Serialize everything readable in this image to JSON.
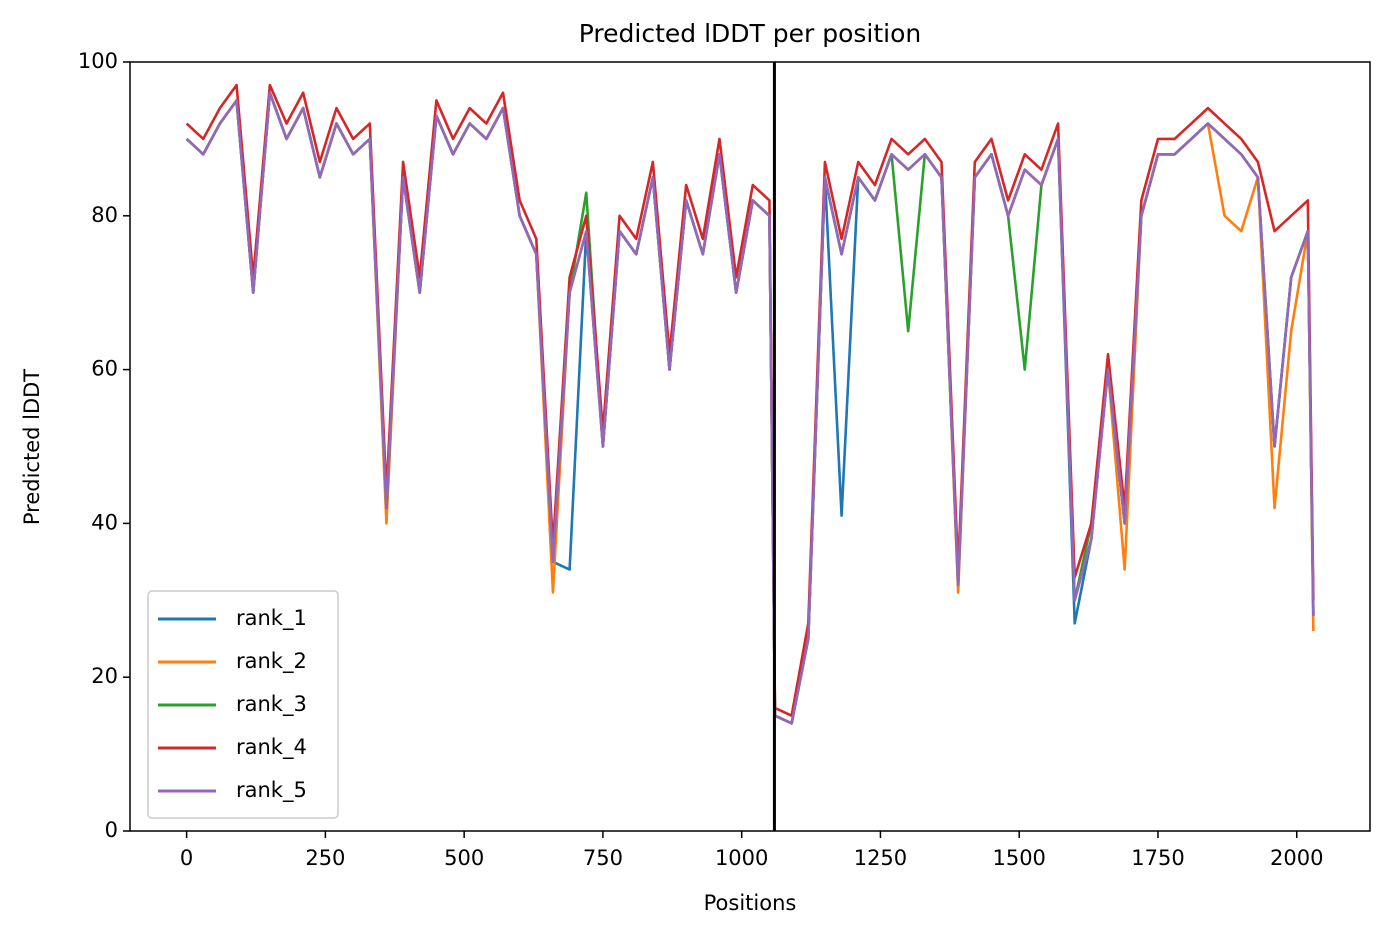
{
  "chart_data": {
    "type": "line",
    "title": "Predicted lDDT per position",
    "xlabel": "Positions",
    "ylabel": "Predicted lDDT",
    "x": [
      0,
      30,
      60,
      90,
      120,
      150,
      180,
      210,
      240,
      270,
      300,
      330,
      360,
      390,
      420,
      450,
      480,
      510,
      540,
      570,
      600,
      630,
      660,
      690,
      720,
      750,
      780,
      810,
      840,
      870,
      900,
      930,
      960,
      990,
      1020,
      1050,
      1060,
      1090,
      1120,
      1150,
      1180,
      1210,
      1240,
      1270,
      1300,
      1330,
      1360,
      1390,
      1420,
      1450,
      1480,
      1510,
      1540,
      1570,
      1600,
      1630,
      1660,
      1690,
      1720,
      1750,
      1780,
      1810,
      1840,
      1870,
      1900,
      1930,
      1960,
      1990,
      2020,
      2030
    ],
    "series": [
      {
        "name": "rank_1",
        "color": "#1f77b4",
        "values": [
          90,
          88,
          92,
          95,
          70,
          96,
          90,
          94,
          85,
          92,
          88,
          90,
          42,
          85,
          70,
          93,
          88,
          92,
          90,
          94,
          80,
          75,
          35,
          34,
          78,
          50,
          78,
          75,
          85,
          60,
          82,
          75,
          88,
          70,
          82,
          80,
          15,
          14,
          25,
          85,
          41,
          85,
          82,
          88,
          86,
          88,
          85,
          32,
          85,
          88,
          80,
          86,
          84,
          90,
          27,
          38,
          60,
          40,
          80,
          88,
          88,
          90,
          92,
          90,
          88,
          85,
          50,
          72,
          78,
          28
        ]
      },
      {
        "name": "rank_2",
        "color": "#ff7f0e",
        "values": [
          90,
          88,
          92,
          95,
          70,
          96,
          90,
          94,
          85,
          92,
          88,
          90,
          40,
          85,
          70,
          93,
          88,
          92,
          90,
          94,
          80,
          75,
          31,
          70,
          78,
          50,
          78,
          75,
          85,
          60,
          82,
          75,
          88,
          70,
          82,
          80,
          15,
          14,
          25,
          85,
          75,
          85,
          82,
          88,
          86,
          88,
          85,
          31,
          85,
          88,
          80,
          86,
          84,
          90,
          30,
          38,
          60,
          34,
          80,
          88,
          88,
          90,
          92,
          80,
          78,
          85,
          42,
          65,
          78,
          26
        ]
      },
      {
        "name": "rank_3",
        "color": "#2ca02c",
        "values": [
          90,
          88,
          92,
          95,
          70,
          96,
          90,
          94,
          85,
          92,
          88,
          90,
          42,
          85,
          70,
          93,
          88,
          92,
          90,
          94,
          80,
          75,
          35,
          70,
          83,
          50,
          78,
          75,
          85,
          60,
          82,
          75,
          88,
          70,
          82,
          80,
          15,
          14,
          25,
          85,
          75,
          85,
          82,
          88,
          65,
          88,
          85,
          32,
          85,
          88,
          80,
          60,
          84,
          90,
          30,
          40,
          60,
          40,
          80,
          88,
          88,
          90,
          92,
          90,
          88,
          85,
          50,
          72,
          78,
          28
        ]
      },
      {
        "name": "rank_4",
        "color": "#d62728",
        "values": [
          92,
          90,
          94,
          97,
          72,
          97,
          92,
          96,
          87,
          94,
          90,
          92,
          44,
          87,
          72,
          95,
          90,
          94,
          92,
          96,
          82,
          77,
          37,
          72,
          80,
          52,
          80,
          77,
          87,
          62,
          84,
          77,
          90,
          72,
          84,
          82,
          16,
          15,
          27,
          87,
          77,
          87,
          84,
          90,
          88,
          90,
          87,
          34,
          87,
          90,
          82,
          88,
          86,
          92,
          33,
          40,
          62,
          42,
          82,
          90,
          90,
          92,
          94,
          92,
          90,
          87,
          78,
          80,
          82,
          30
        ]
      },
      {
        "name": "rank_5",
        "color": "#9467bd",
        "values": [
          90,
          88,
          92,
          95,
          70,
          96,
          90,
          94,
          85,
          92,
          88,
          90,
          42,
          85,
          70,
          93,
          88,
          92,
          90,
          94,
          80,
          75,
          35,
          70,
          78,
          50,
          78,
          75,
          85,
          60,
          82,
          75,
          88,
          70,
          82,
          80,
          15,
          14,
          25,
          85,
          75,
          85,
          82,
          88,
          86,
          88,
          85,
          32,
          85,
          88,
          80,
          86,
          84,
          90,
          30,
          38,
          60,
          40,
          80,
          88,
          88,
          90,
          92,
          90,
          88,
          85,
          50,
          72,
          78,
          28
        ]
      }
    ],
    "vline": 1059,
    "xlim": [
      -102,
      2132
    ],
    "ylim": [
      0,
      100
    ],
    "xticks": [
      0,
      250,
      500,
      750,
      1000,
      1250,
      1500,
      1750,
      2000
    ],
    "yticks": [
      0,
      20,
      40,
      60,
      80,
      100
    ],
    "legend": "lower left"
  }
}
